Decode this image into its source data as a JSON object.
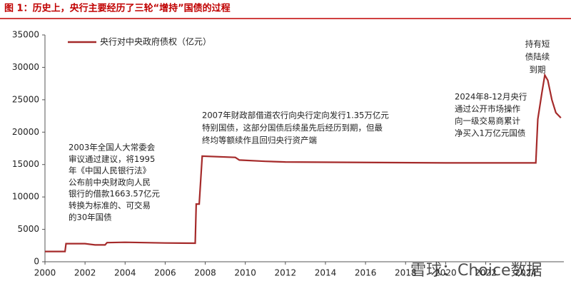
{
  "chart_data": {
    "type": "line",
    "title": "图 1：历史上，央行主要经历了三轮“增持”国债的过程",
    "x": [
      2000,
      2001.0,
      2001.05,
      2002,
      2002.5,
      2003,
      2003.1,
      2004,
      2005,
      2006,
      2007.5,
      2007.55,
      2007.7,
      2007.85,
      2009.5,
      2009.7,
      2011,
      2012,
      2020,
      2024.5,
      2024.6,
      2024.8,
      2024.95,
      2025.1,
      2025.3,
      2025.5,
      2025.75
    ],
    "series": [
      {
        "name": "央行对中央政府债权（亿元）",
        "color": "#a52a2a",
        "values": [
          1580,
          1580,
          2800,
          2800,
          2600,
          2600,
          2950,
          3000,
          2950,
          2900,
          2860,
          8900,
          8900,
          16300,
          16100,
          15700,
          15500,
          15400,
          15250,
          15250,
          22000,
          26000,
          28800,
          28000,
          25000,
          23000,
          22200
        ]
      }
    ],
    "xlim": [
      2000,
      2025.9
    ],
    "xticks": [
      2000,
      2002,
      2004,
      2006,
      2008,
      2010,
      2012,
      2014,
      2016,
      2018,
      2020,
      2022,
      2024
    ],
    "ylim": [
      0,
      35000
    ],
    "yticks": [
      0,
      5000,
      10000,
      15000,
      20000,
      25000,
      30000,
      35000
    ],
    "legend": "top-left",
    "annotations": [
      {
        "lines": [
          "2003年全国人大常委会",
          "审议通过建议，将1995",
          "年《中国人民银行法》",
          "公布前中央财政向人民",
          "银行的借款1663.57亿元",
          "转换为标准的、可交易",
          "的30年国债"
        ]
      },
      {
        "lines": [
          "2007年财政部借道农行向央行定向发行1.35万亿元",
          "特别国债，这部分国债后续虽先后经历到期，但最",
          "终均等额续作且回归央行资产端"
        ]
      },
      {
        "lines": [
          "2024年8-12月央行",
          "通过公开市场操作",
          "向一级交易商累计",
          "净买入1万亿元国债"
        ]
      },
      {
        "lines": [
          "持有短",
          "债陆续",
          "到期"
        ]
      }
    ],
    "watermark": "雪球：Choice数据"
  }
}
